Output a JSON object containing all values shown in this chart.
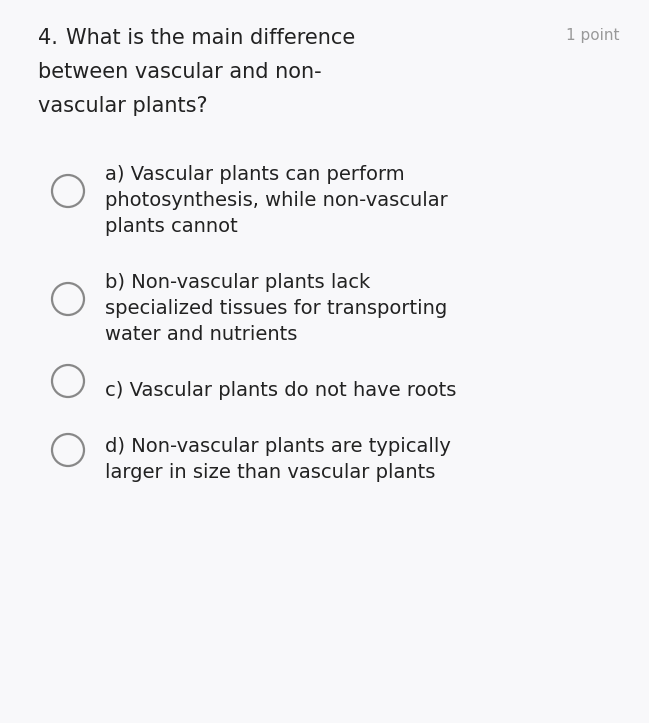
{
  "background_color": "#f8f8fa",
  "question_number": "4.",
  "question_text_line1": "What is the main difference",
  "question_text_line2": "between vascular and non-",
  "question_text_line3": "vascular plants?",
  "points_text": "1 point",
  "options": [
    {
      "lines": [
        "a) Vascular plants can perform",
        "photosynthesis, while non-vascular",
        "plants cannot"
      ]
    },
    {
      "lines": [
        "b) Non-vascular plants lack",
        "specialized tissues for transporting",
        "water and nutrients"
      ]
    },
    {
      "lines": [
        "c) Vascular plants do not have roots"
      ]
    },
    {
      "lines": [
        "d) Non-vascular plants are typically",
        "larger in size than vascular plants"
      ]
    }
  ],
  "question_fontsize": 15,
  "points_fontsize": 11,
  "option_fontsize": 14,
  "question_color": "#222222",
  "points_color": "#999999",
  "option_text_color": "#222222",
  "circle_edge_color": "#888888",
  "fig_width": 6.49,
  "fig_height": 7.23
}
